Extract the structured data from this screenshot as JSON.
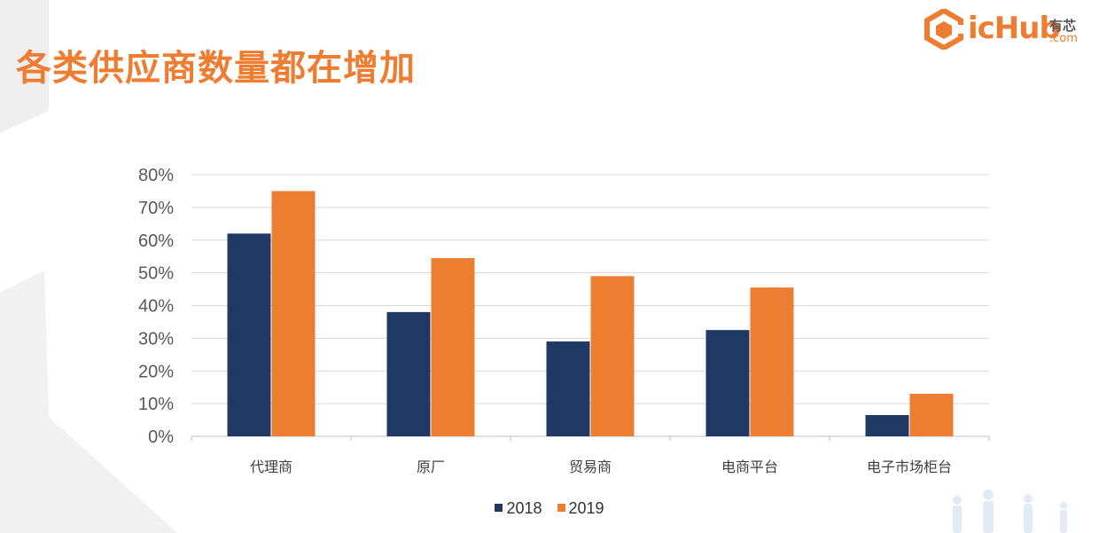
{
  "slide": {
    "title": "各类供应商数量都在增加",
    "logo": {
      "text": "icHub",
      "cn": "有芯",
      "com": ".com"
    }
  },
  "colors": {
    "accent": "#ee7d31",
    "series_2018": "#1f3864",
    "series_2019": "#ed7d31"
  },
  "chart_data": {
    "type": "bar",
    "categories": [
      "代理商",
      "原厂",
      "贸易商",
      "电商平台",
      "电子市场柜台"
    ],
    "series": [
      {
        "name": "2018",
        "values": [
          62,
          38,
          29,
          32.5,
          6.5
        ]
      },
      {
        "name": "2019",
        "values": [
          75,
          54.5,
          49,
          45.5,
          13
        ]
      }
    ],
    "yticks": [
      "0%",
      "10%",
      "20%",
      "30%",
      "40%",
      "50%",
      "60%",
      "70%",
      "80%"
    ],
    "ylim": [
      0,
      80
    ],
    "grid": true,
    "legend": "bottom"
  }
}
